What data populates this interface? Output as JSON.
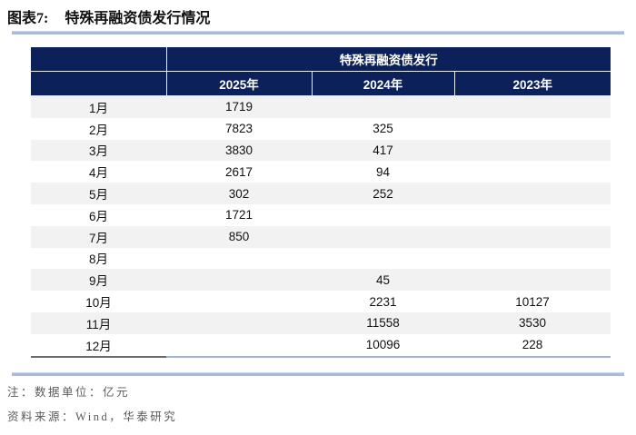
{
  "page": {
    "title_label": "图表7:",
    "title_text": "特殊再融资债发行情况"
  },
  "chart_data": {
    "type": "table",
    "title": "特殊再融资债发行情况",
    "group_header": "特殊再融资债发行",
    "columns": [
      "",
      "2025年",
      "2024年",
      "2023年"
    ],
    "rows": [
      [
        "1月",
        "1719",
        "",
        ""
      ],
      [
        "2月",
        "7823",
        "325",
        ""
      ],
      [
        "3月",
        "3830",
        "417",
        ""
      ],
      [
        "4月",
        "2617",
        "94",
        ""
      ],
      [
        "5月",
        "302",
        "252",
        ""
      ],
      [
        "6月",
        "1721",
        "",
        ""
      ],
      [
        "7月",
        "850",
        "",
        ""
      ],
      [
        "8月",
        "",
        "",
        ""
      ],
      [
        "9月",
        "",
        "45",
        ""
      ],
      [
        "10月",
        "",
        "2231",
        "10127"
      ],
      [
        "11月",
        "",
        "11558",
        "3530"
      ],
      [
        "12月",
        "",
        "10096",
        "228"
      ]
    ],
    "unit": "亿元"
  },
  "footer": {
    "note": "注：数据单位：亿元",
    "source": "资料来源：Wind，华泰研究"
  },
  "colors": {
    "header_bg": "#0c2159",
    "row_alt_bg": "#f2f2f2",
    "rule_blue": "#a9bcd8",
    "note_text": "#595959"
  }
}
